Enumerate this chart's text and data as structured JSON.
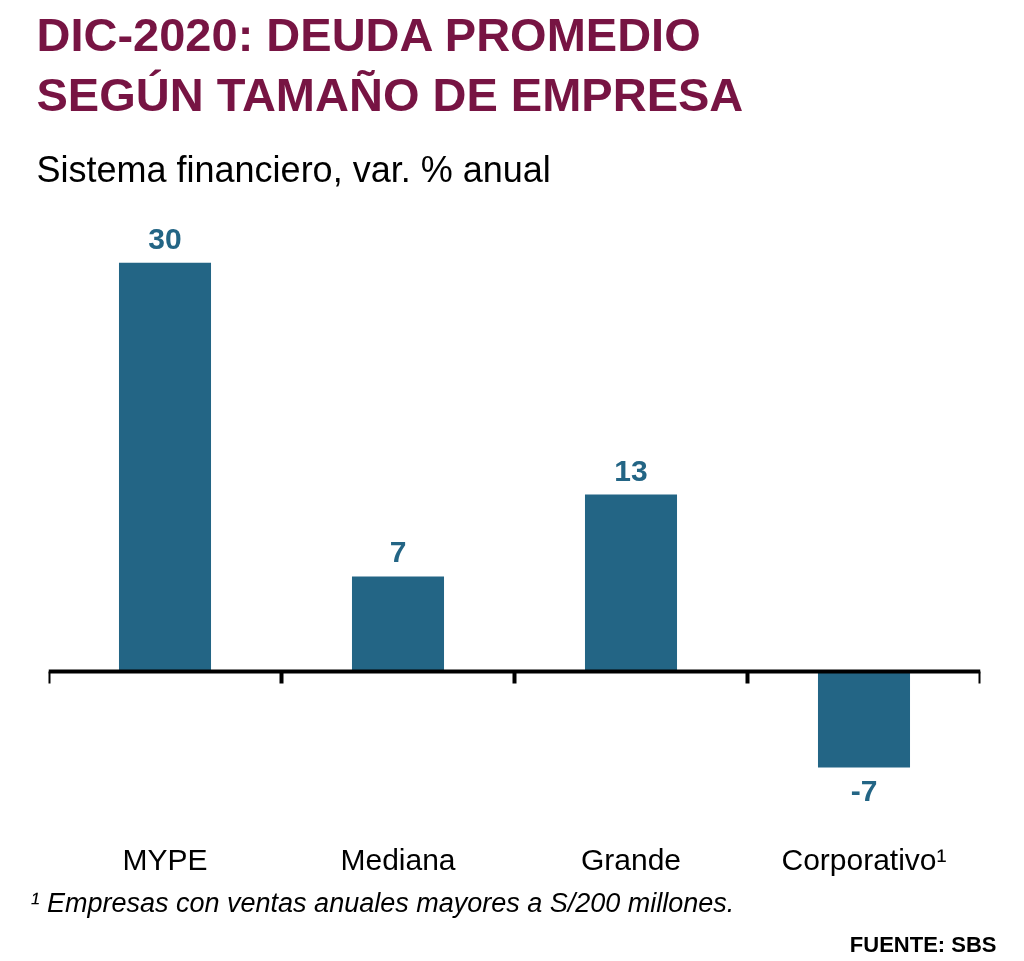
{
  "chart_data": {
    "type": "bar",
    "title": "DIC-2020: DEUDA PROMEDIO SEGÚN TAMAÑO DE EMPRESA",
    "subtitle": "Sistema financiero, var. % anual",
    "categories": [
      "MYPE",
      "Mediana",
      "Grande",
      "Corporativo¹"
    ],
    "values": [
      30,
      7,
      13,
      -7
    ],
    "color": "#236585",
    "data_labels": true,
    "grid": false,
    "annotations": [
      "¹ Empresas con ventas anuales mayores a S/200 millones.",
      "FUENTE: SBS"
    ]
  }
}
